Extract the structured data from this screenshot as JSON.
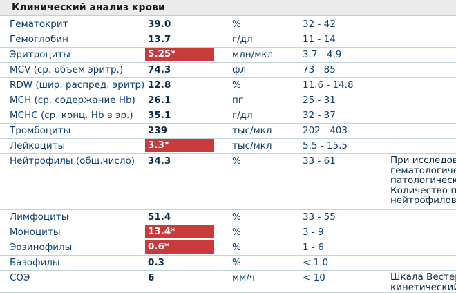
{
  "title": "Клинический анализ крови",
  "colors": {
    "abnormal_bg": "#c93a3b",
    "text": "#0a3f72",
    "header_bg": "#ebebeb"
  },
  "rows": [
    {
      "name": "Гематокрит",
      "value": "39.0",
      "unit": "%",
      "ref": "32 - 42",
      "abnormal": false
    },
    {
      "name": "Гемоглобин",
      "value": "13.7",
      "unit": "г/дл",
      "ref": "11 - 14",
      "abnormal": false
    },
    {
      "name": "Эритроциты",
      "value": "5.25*",
      "unit": "млн/мкл",
      "ref": "3.7 - 4.9",
      "abnormal": true
    },
    {
      "name": "MCV (ср. объем эритр.)",
      "value": "74.3",
      "unit": "фл",
      "ref": "73 - 85",
      "abnormal": false
    },
    {
      "name": "RDW (шир. распред. эритр)",
      "value": "12.8",
      "unit": "%",
      "ref": "11.6 - 14.8",
      "abnormal": false
    },
    {
      "name": "MCH (ср. содержание Hb)",
      "value": "26.1",
      "unit": "пг",
      "ref": "25 - 31",
      "abnormal": false
    },
    {
      "name": "MCHC (ср. конц. Hb в эр.)",
      "value": "35.1",
      "unit": "г/дл",
      "ref": "32 - 37",
      "abnormal": false
    },
    {
      "name": "Тромбоциты",
      "value": "239",
      "unit": "тыс/мкл",
      "ref": "202 - 403",
      "abnormal": false
    },
    {
      "name": "Лейкоциты",
      "value": "3.3*",
      "unit": "тыс/мкл",
      "ref": "5.5 - 15.5",
      "abnormal": true
    },
    {
      "name": "Нейтрофилы (общ.число)",
      "value": "34.3",
      "unit": "%",
      "ref": "33 - 61",
      "abnormal": false,
      "note": [
        "При исследова",
        "гематологичес",
        "патологически",
        "Количество па",
        "нейтрофилов"
      ]
    },
    {
      "name": "Лимфоциты",
      "value": "51.4",
      "unit": "%",
      "ref": "33 - 55",
      "abnormal": false
    },
    {
      "name": "Моноциты",
      "value": "13.4*",
      "unit": "%",
      "ref": "3 - 9",
      "abnormal": true
    },
    {
      "name": "Эозинофилы",
      "value": "0.6*",
      "unit": "%",
      "ref": "1 - 6",
      "abnormal": true
    },
    {
      "name": "Базофилы",
      "value": "0.3",
      "unit": "%",
      "ref": "< 1.0",
      "abnormal": false
    },
    {
      "name": "СОЭ",
      "value": "6",
      "unit": "мм/ч",
      "ref": "< 10",
      "abnormal": false,
      "note": [
        "Шкала Вестер",
        "кинетический"
      ]
    }
  ]
}
